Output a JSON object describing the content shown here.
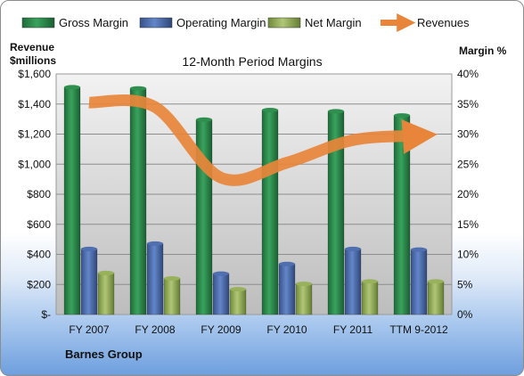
{
  "chart_data": {
    "type": "bar",
    "title": "12-Month Period Margins",
    "company": "Barnes Group",
    "categories": [
      "FY 2007",
      "FY 2008",
      "FY 2009",
      "FY 2010",
      "FY 2011",
      "TTM 9-2012"
    ],
    "y_left_label": [
      "Revenue",
      "$millions"
    ],
    "y_left_ticks": [
      "$-",
      "$200",
      "$400",
      "$600",
      "$800",
      "$1,000",
      "$1,200",
      "$1,400",
      "$1,600"
    ],
    "y_left_range": [
      0,
      1600
    ],
    "y_right_label": "Margin %",
    "y_right_ticks": [
      "0%",
      "5%",
      "10%",
      "15%",
      "20%",
      "25%",
      "30%",
      "35%",
      "40%"
    ],
    "y_right_range": [
      0,
      40
    ],
    "grid": true,
    "legend_position": "top",
    "series": [
      {
        "name": "Gross Margin",
        "kind": "bar",
        "axis": "right",
        "color": "#2f8f4e",
        "values": [
          37.8,
          37.6,
          32.4,
          34.0,
          33.8,
          33.1
        ]
      },
      {
        "name": "Operating Margin",
        "kind": "bar",
        "axis": "right",
        "color": "#4f6fb0",
        "values": [
          10.9,
          11.8,
          6.8,
          8.4,
          10.9,
          10.8
        ]
      },
      {
        "name": "Net Margin",
        "kind": "bar",
        "axis": "right",
        "color": "#97b25a",
        "values": [
          6.9,
          6.0,
          4.2,
          5.1,
          5.5,
          5.5
        ]
      },
      {
        "name": "Revenues",
        "kind": "line",
        "axis": "left",
        "color": "#e8853a",
        "values": [
          1410,
          1380,
          910,
          1010,
          1160,
          1190
        ]
      }
    ]
  }
}
